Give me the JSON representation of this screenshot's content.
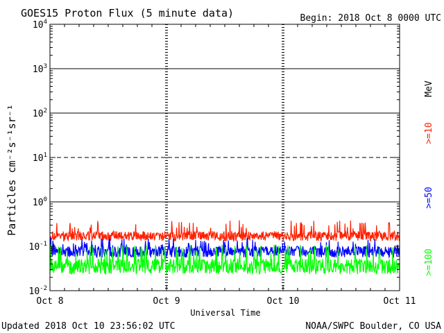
{
  "chart_data": {
    "type": "line",
    "title": "GOES15 Proton Flux (5 minute data)",
    "begin": "Begin: 2018 Oct 8 0000 UTC",
    "updated": "Updated 2018 Oct 10 23:56:02 UTC",
    "source": "NOAA/SWPC Boulder, CO USA",
    "xlabel": "Universal Time",
    "ylabel": "Particles cm⁻²s⁻¹sr⁻¹",
    "yscale": "log",
    "ylim": [
      0.01,
      10000
    ],
    "xlim_days": [
      0,
      3
    ],
    "x_ticks": [
      "Oct 8",
      "Oct 9",
      "Oct 10",
      "Oct 11"
    ],
    "y_ticks": [
      {
        "base": "10",
        "exp": "-2"
      },
      {
        "base": "10",
        "exp": "-1"
      },
      {
        "base": "10",
        "exp": "0"
      },
      {
        "base": "10",
        "exp": "1"
      },
      {
        "base": "10",
        "exp": "2"
      },
      {
        "base": "10",
        "exp": "3"
      },
      {
        "base": "10",
        "exp": "4"
      }
    ],
    "threshold_lines": [
      {
        "value": 10,
        "style": "dashed"
      },
      {
        "value": 1,
        "style": "solid"
      },
      {
        "value": 100,
        "style": "solid"
      },
      {
        "value": 1000,
        "style": "solid"
      }
    ],
    "legend_unit": "MeV",
    "series": [
      {
        "name": ">=10",
        "color": "#ff2000",
        "base": 0.17,
        "spread": 0.22,
        "spikes": 0.28
      },
      {
        "name": ">=50",
        "color": "#0000ff",
        "base": 0.075,
        "spread": 0.25,
        "spikes": 0.11
      },
      {
        "name": ">=100",
        "color": "#00ff00",
        "base": 0.035,
        "spread": 0.35,
        "spikes": 0.08
      }
    ]
  }
}
